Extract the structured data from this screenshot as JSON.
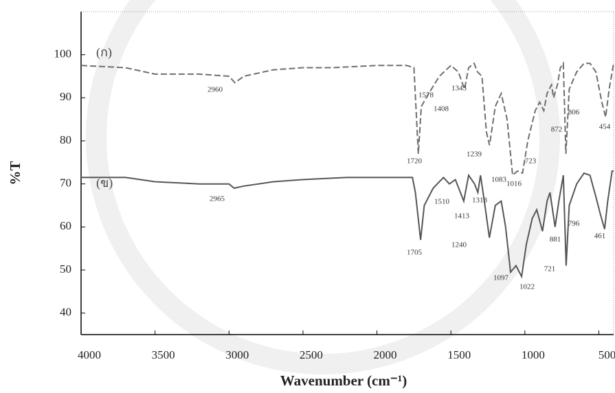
{
  "chart_data": {
    "type": "line",
    "x_label": "Wavenumber (cm⁻¹)",
    "y_label": "%T",
    "xlim": [
      4000,
      400
    ],
    "xticks": [
      4000,
      3500,
      3000,
      2500,
      2000,
      1500,
      1000,
      500
    ],
    "ylim": [
      35,
      110
    ],
    "yticks": [
      40,
      50,
      60,
      70,
      80,
      90,
      100
    ],
    "series": [
      {
        "name": "(ก)",
        "color": "#6e6e6e",
        "dashed": true,
        "x": [
          4000,
          3700,
          3500,
          3200,
          3000,
          2960,
          2900,
          2700,
          2500,
          2300,
          2000,
          1800,
          1750,
          1720,
          1700,
          1650,
          1578,
          1500,
          1450,
          1408,
          1380,
          1343,
          1320,
          1290,
          1260,
          1239,
          1200,
          1160,
          1120,
          1083,
          1050,
          1016,
          980,
          930,
          900,
          872,
          850,
          820,
          806,
          780,
          760,
          740,
          723,
          700,
          650,
          600,
          560,
          520,
          480,
          454,
          430,
          400
        ],
        "values": [
          97.5,
          97,
          95.5,
          95.5,
          95,
          93.5,
          95,
          96.5,
          97,
          97,
          97.5,
          97.5,
          97,
          77,
          88,
          91,
          95,
          97.5,
          96,
          92,
          97,
          98,
          96,
          95,
          82,
          79,
          88,
          91,
          85,
          72,
          73,
          72.5,
          80,
          87,
          89,
          87,
          91,
          93,
          90,
          93,
          97,
          98,
          77,
          92,
          96,
          98,
          98,
          96,
          89,
          85.5,
          92,
          98
        ],
        "annotations": [
          "2960",
          "1578",
          "1343",
          "1408",
          "806",
          "872",
          "454",
          "1720",
          "1239",
          "1083",
          "1016",
          "723"
        ]
      },
      {
        "name": "(ข)",
        "color": "#555555",
        "dashed": false,
        "x": [
          4000,
          3700,
          3500,
          3200,
          3000,
          2965,
          2900,
          2700,
          2500,
          2200,
          2000,
          1800,
          1760,
          1740,
          1705,
          1680,
          1620,
          1550,
          1510,
          1470,
          1413,
          1380,
          1340,
          1318,
          1300,
          1270,
          1240,
          1200,
          1160,
          1130,
          1097,
          1060,
          1022,
          990,
          950,
          920,
          881,
          850,
          830,
          796,
          770,
          740,
          721,
          700,
          650,
          600,
          560,
          520,
          490,
          461,
          440,
          410,
          400
        ],
        "values": [
          71.5,
          71.5,
          70.5,
          70,
          70,
          69,
          69.5,
          70.5,
          71,
          71.5,
          71.5,
          71.5,
          71.5,
          68,
          57,
          65,
          69,
          71.5,
          70,
          71,
          66,
          72,
          70,
          68,
          72,
          65,
          57.5,
          65,
          66,
          60,
          49.5,
          51,
          48.5,
          56,
          62,
          64,
          59,
          66,
          68,
          60,
          66,
          72,
          51,
          65,
          70,
          72.5,
          72,
          67,
          63,
          59.5,
          66,
          73,
          73
        ],
        "annotations": [
          "2965",
          "1510",
          "1413",
          "1318",
          "796",
          "881",
          "461",
          "1705",
          "1240",
          "1097",
          "1022",
          "721"
        ]
      }
    ]
  }
}
